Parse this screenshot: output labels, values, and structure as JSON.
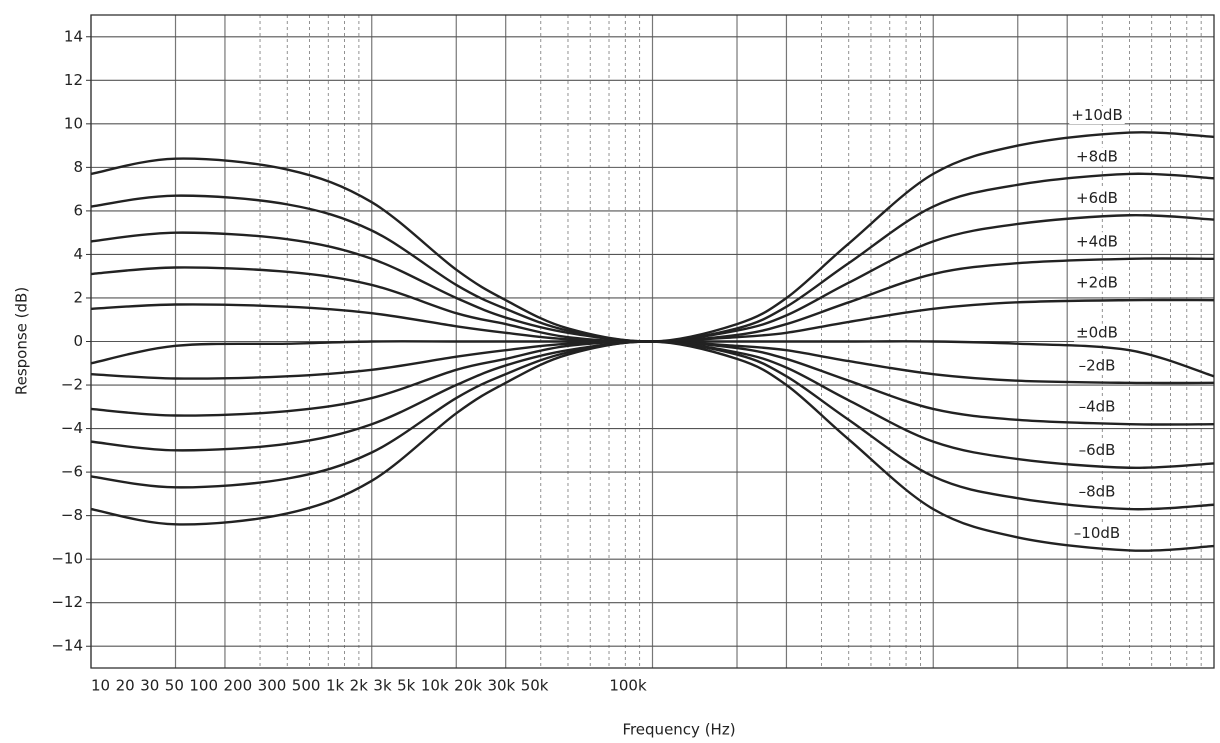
{
  "chart_data": {
    "type": "line",
    "y_label": "Response (dB)",
    "x_label": "Frequency (Hz)",
    "x_scale": "log",
    "x_axis_labels": [
      "10",
      "20",
      "30",
      "50",
      "100",
      "200",
      "300",
      "500",
      "1k",
      "2k",
      "3k",
      "5k",
      "10k",
      "20k",
      "30k",
      "50k",
      "100k"
    ],
    "x": [
      10,
      20,
      50,
      100,
      200,
      300,
      500,
      1000,
      2000,
      3000,
      5000,
      10000,
      20000,
      50000,
      100000
    ],
    "xlim": [
      10,
      100000
    ],
    "ylim": [
      -15,
      15
    ],
    "yticks": [
      {
        "value": -14,
        "label": "−14"
      },
      {
        "value": -12,
        "label": "−12"
      },
      {
        "value": -10,
        "label": "−10"
      },
      {
        "value": -8,
        "label": "−8"
      },
      {
        "value": -6,
        "label": "−6"
      },
      {
        "value": -4,
        "label": "−4"
      },
      {
        "value": -2,
        "label": "−2"
      },
      0,
      2,
      4,
      6,
      8,
      10,
      12,
      14
    ],
    "grid": true,
    "series": [
      {
        "name": "+10dB",
        "color": "#222222",
        "values": [
          7.7,
          8.4,
          7.9,
          6.4,
          3.3,
          1.9,
          0.6,
          0,
          0.8,
          2.0,
          4.5,
          7.7,
          9.0,
          9.6,
          9.4
        ]
      },
      {
        "name": "+8dB",
        "color": "#222222",
        "values": [
          6.2,
          6.7,
          6.3,
          5.1,
          2.6,
          1.5,
          0.5,
          0,
          0.6,
          1.6,
          3.6,
          6.2,
          7.2,
          7.7,
          7.5
        ]
      },
      {
        "name": "+6dB",
        "color": "#222222",
        "values": [
          4.6,
          5.0,
          4.7,
          3.8,
          2.0,
          1.1,
          0.4,
          0,
          0.5,
          1.2,
          2.7,
          4.6,
          5.4,
          5.8,
          5.6
        ]
      },
      {
        "name": "+4dB",
        "color": "#222222",
        "values": [
          3.1,
          3.4,
          3.2,
          2.6,
          1.3,
          0.8,
          0.2,
          0,
          0.3,
          0.8,
          1.8,
          3.1,
          3.6,
          3.8,
          3.8
        ]
      },
      {
        "name": "+2dB",
        "color": "#222222",
        "values": [
          1.5,
          1.7,
          1.6,
          1.3,
          0.7,
          0.4,
          0.1,
          0,
          0.2,
          0.4,
          0.9,
          1.5,
          1.8,
          1.9,
          1.9
        ]
      },
      {
        "name": "±0dB",
        "color": "#222222",
        "values": [
          -1.0,
          -0.2,
          -0.1,
          0,
          0,
          0,
          0,
          0,
          0,
          0,
          0,
          0,
          -0.1,
          -0.4,
          -1.6
        ]
      },
      {
        "name": "–2dB",
        "color": "#222222",
        "values": [
          -1.5,
          -1.7,
          -1.6,
          -1.3,
          -0.7,
          -0.4,
          -0.1,
          0,
          -0.2,
          -0.4,
          -0.9,
          -1.5,
          -1.8,
          -1.9,
          -1.9
        ]
      },
      {
        "name": "–4dB",
        "color": "#222222",
        "values": [
          -3.1,
          -3.4,
          -3.2,
          -2.6,
          -1.3,
          -0.8,
          -0.2,
          0,
          -0.3,
          -0.8,
          -1.8,
          -3.1,
          -3.6,
          -3.8,
          -3.8
        ]
      },
      {
        "name": "–6dB",
        "color": "#222222",
        "values": [
          -4.6,
          -5.0,
          -4.7,
          -3.8,
          -2.0,
          -1.1,
          -0.4,
          0,
          -0.5,
          -1.2,
          -2.7,
          -4.6,
          -5.4,
          -5.8,
          -5.6
        ]
      },
      {
        "name": "–8dB",
        "color": "#222222",
        "values": [
          -6.2,
          -6.7,
          -6.3,
          -5.1,
          -2.6,
          -1.5,
          -0.5,
          0,
          -0.6,
          -1.6,
          -3.6,
          -6.2,
          -7.2,
          -7.7,
          -7.5
        ]
      },
      {
        "name": "–10dB",
        "color": "#222222",
        "values": [
          -7.7,
          -8.4,
          -7.9,
          -6.4,
          -3.3,
          -1.9,
          -0.6,
          0,
          -0.8,
          -2.0,
          -4.5,
          -7.7,
          -9.0,
          -9.6,
          -9.4
        ]
      }
    ]
  }
}
